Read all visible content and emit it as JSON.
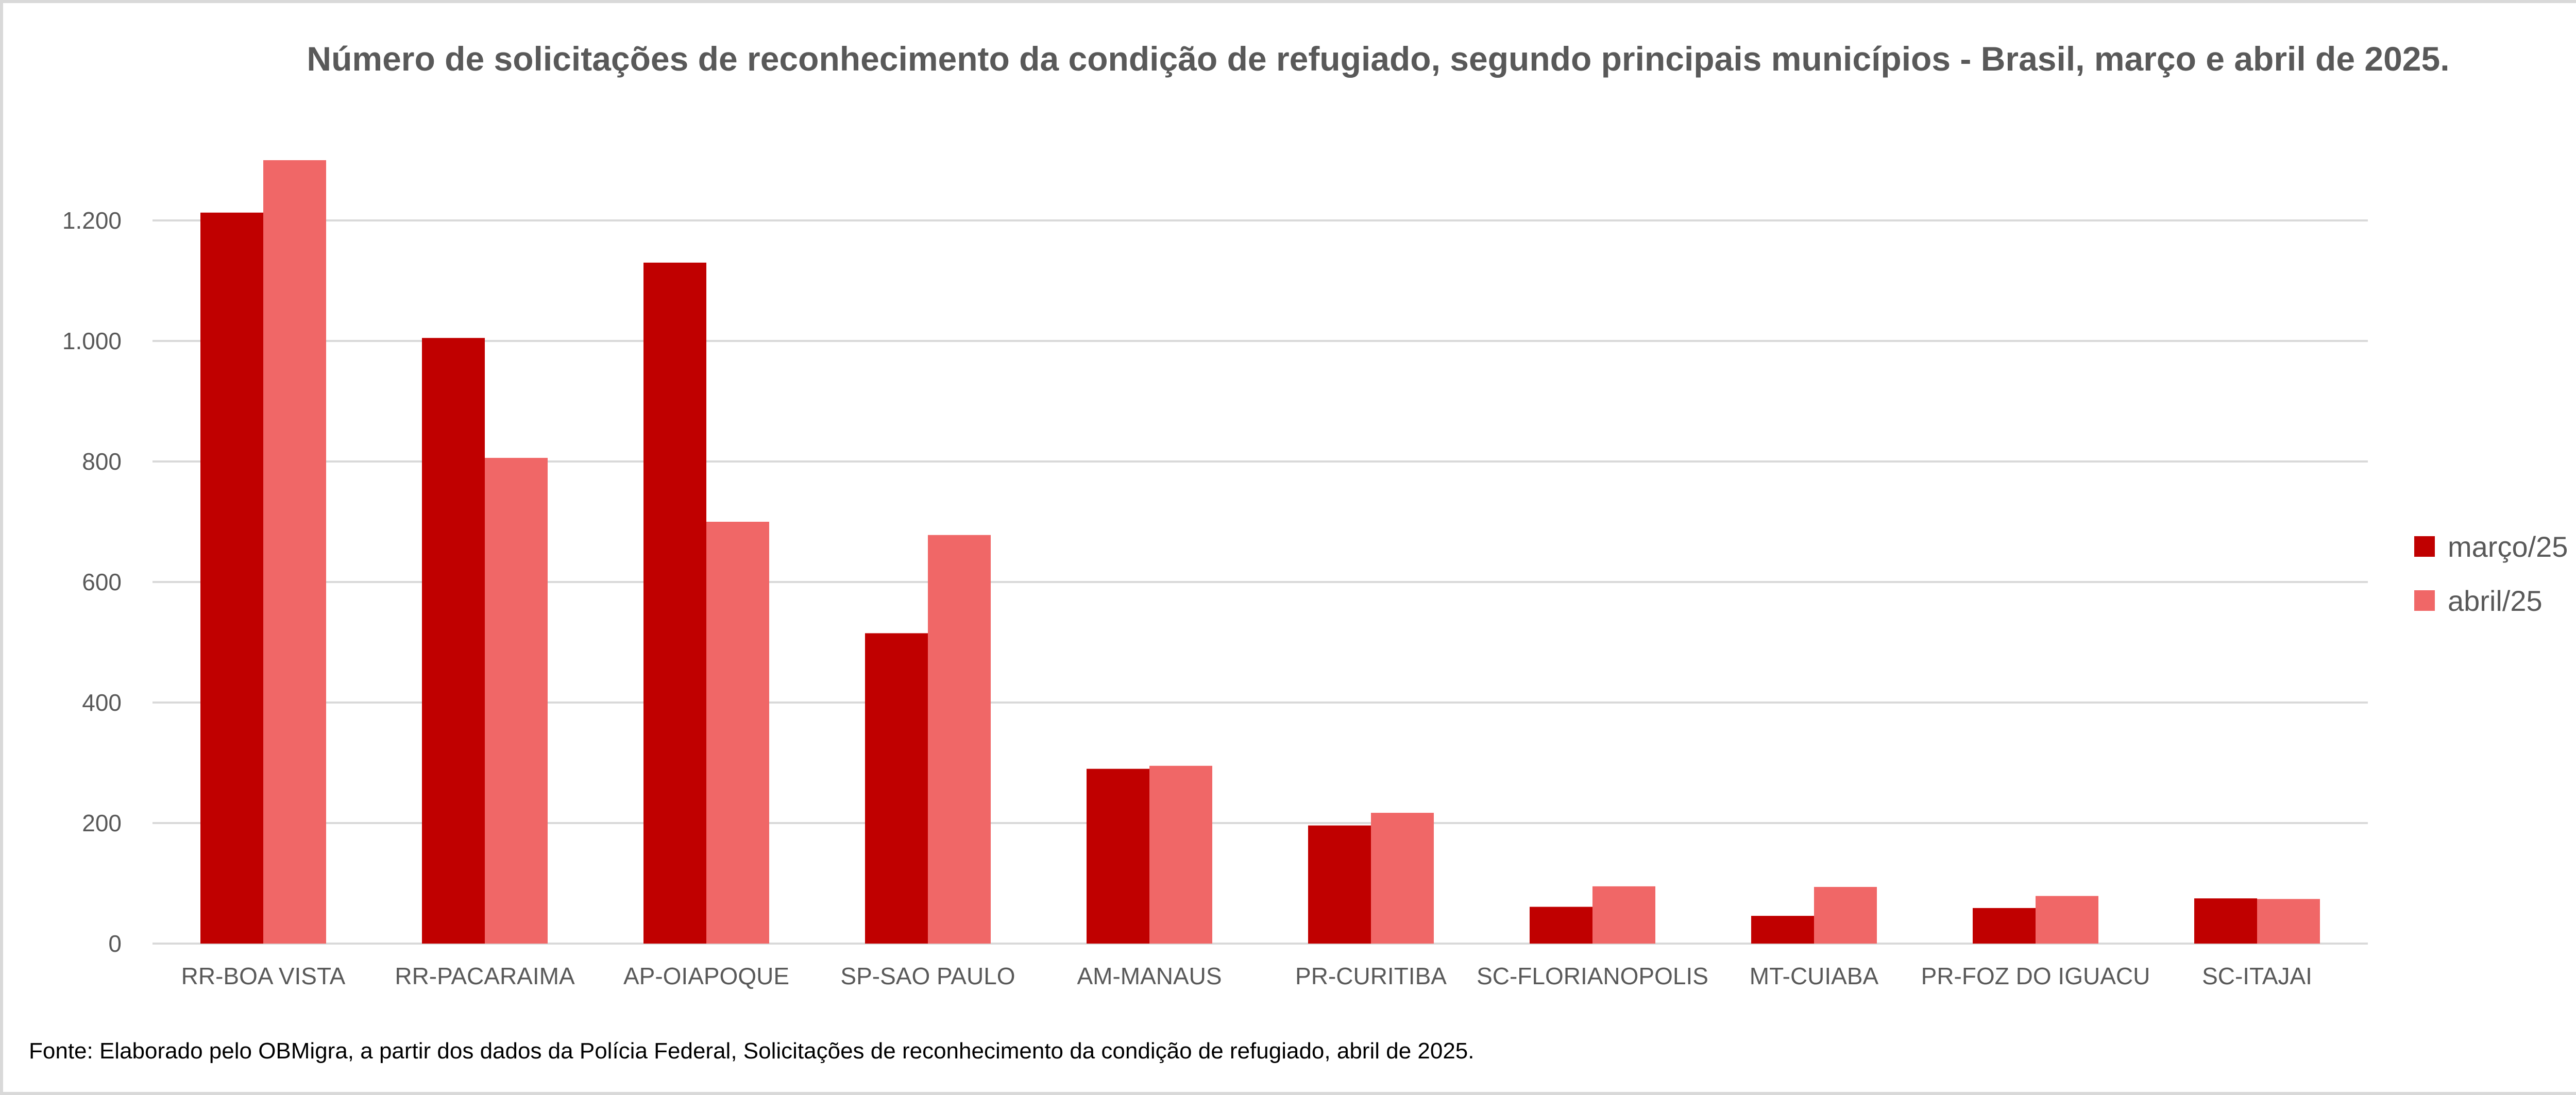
{
  "chart_data": {
    "type": "bar",
    "title": "Número de solicitações de reconhecimento da condição de refugiado, segundo principais municípios - Brasil, março e abril de 2025.",
    "categories": [
      "RR-BOA VISTA",
      "RR-PACARAIMA",
      "AP-OIAPOQUE",
      "SP-SAO PAULO",
      "AM-MANAUS",
      "PR-CURITIBA",
      "SC-FLORIANOPOLIS",
      "MT-CUIABA",
      "PR-FOZ DO IGUACU",
      "SC-ITAJAI"
    ],
    "series": [
      {
        "name": "março/25",
        "color": "#C00000",
        "values": [
          1213,
          1005,
          1130,
          515,
          290,
          196,
          61,
          46,
          59,
          75
        ]
      },
      {
        "name": "abril/25",
        "color": "#F06767",
        "values": [
          1300,
          806,
          700,
          678,
          295,
          217,
          95,
          94,
          79,
          74
        ]
      }
    ],
    "ylim": [
      0,
      1300
    ],
    "yticks": [
      0,
      200,
      400,
      600,
      800,
      1000,
      1200
    ],
    "ytick_labels": [
      "0",
      "200",
      "400",
      "600",
      "800",
      "1.000",
      "1.200"
    ],
    "grid": true,
    "legend_position": "right",
    "xlabel": "",
    "ylabel": ""
  },
  "footer": "Fonte: Elaborado pelo OBMigra, a partir dos dados da Polícia Federal, Solicitações de reconhecimento da condição de refugiado, abril  de 2025."
}
